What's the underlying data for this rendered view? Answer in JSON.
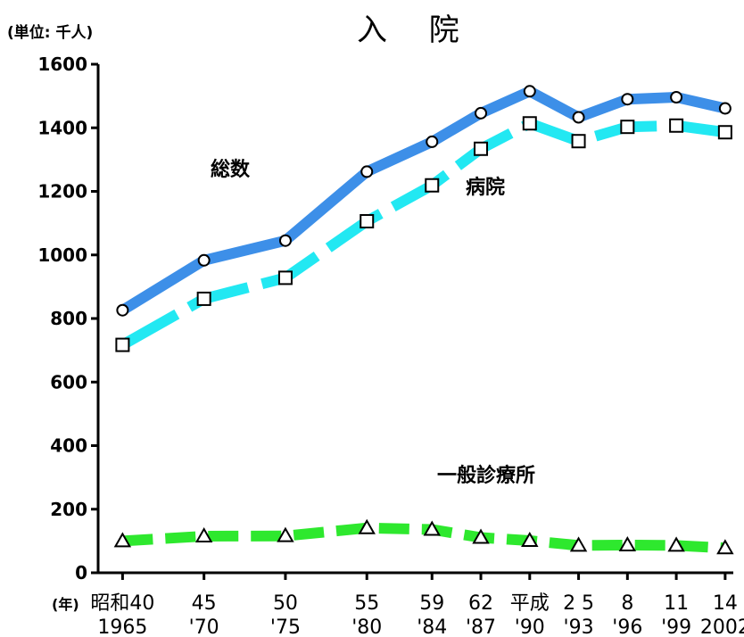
{
  "chart_data": {
    "type": "line",
    "title": "入 院",
    "unit_label": "(単位: 千人)",
    "xlabel": "(年)",
    "ylim": [
      0,
      1600
    ],
    "yticks": [
      "0",
      "200",
      "400",
      "600",
      "800",
      "1000",
      "1200",
      "1400",
      "1600"
    ],
    "categories": [
      {
        "era": "昭和40",
        "year": "1965"
      },
      {
        "era": "45",
        "year": "'70"
      },
      {
        "era": "50",
        "year": "'75"
      },
      {
        "era": "55",
        "year": "'80"
      },
      {
        "era": "59",
        "year": "'84"
      },
      {
        "era": "62",
        "year": "'87"
      },
      {
        "era": "平成",
        "year": "'90"
      },
      {
        "era": "2 5",
        "year": "'93"
      },
      {
        "era": "8",
        "year": "'96"
      },
      {
        "era": "11",
        "year": "'99"
      },
      {
        "era": "14",
        "year": "2002"
      }
    ],
    "x_positions_years": [
      1965,
      1970,
      1975,
      1980,
      1984,
      1987,
      1990,
      1993,
      1996,
      1999,
      2002
    ],
    "series": [
      {
        "name": "総数",
        "color": "#3d8fe8",
        "style": "solid",
        "marker": "circle",
        "values": [
          826,
          983,
          1045,
          1262,
          1356,
          1446,
          1515,
          1433,
          1490,
          1496,
          1461
        ]
      },
      {
        "name": "病院",
        "color": "#22e8f2",
        "style": "dashed",
        "marker": "square",
        "values": [
          717,
          862,
          928,
          1106,
          1219,
          1334,
          1414,
          1358,
          1403,
          1407,
          1386
        ]
      },
      {
        "name": "一般診療所",
        "color": "#2ee82e",
        "style": "dashed",
        "marker": "triangle",
        "values": [
          100,
          115,
          116,
          141,
          136,
          111,
          101,
          86,
          87,
          86,
          78
        ]
      }
    ],
    "grid": false,
    "legend": "inline labels"
  }
}
